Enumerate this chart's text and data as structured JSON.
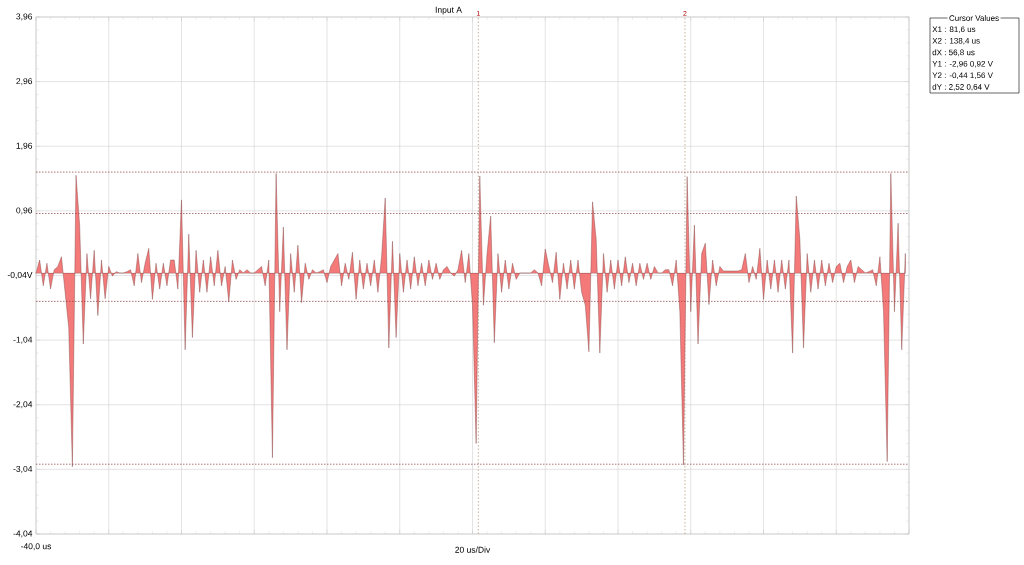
{
  "chart_data": {
    "type": "area",
    "title": "Input A",
    "xlabel": "20 us/Div",
    "color": "#f47a7a",
    "ylim": [
      -4.04,
      3.96
    ],
    "yticks": [
      {
        "value": -4.04,
        "label": "-4,04"
      },
      {
        "value": -3.04,
        "label": "-3,04"
      },
      {
        "value": -2.04,
        "label": "-2,04"
      },
      {
        "value": -1.04,
        "label": "-1,04"
      },
      {
        "value": -0.04,
        "label": "-0,04V"
      },
      {
        "value": 0.96,
        "label": "0,96"
      },
      {
        "value": 1.96,
        "label": "1,96"
      },
      {
        "value": 2.96,
        "label": "2,96"
      },
      {
        "value": 3.96,
        "label": "3,96"
      }
    ],
    "grid": true,
    "ref_lines": [
      {
        "axis": "y",
        "value": 0.92,
        "color": "#8a3a3a",
        "line_style": "dotted"
      },
      {
        "axis": "y",
        "value": 1.56,
        "color": "#8a3a3a",
        "line_style": "dotted"
      },
      {
        "axis": "y",
        "value": -0.44,
        "color": "#8a3a3a",
        "line_style": "dotted"
      },
      {
        "axis": "y",
        "value": -2.96,
        "color": "#8a3a3a",
        "line_style": "dotted"
      }
    ],
    "annotations": [
      "1",
      "2",
      "-40,0 us",
      "Cursor Values",
      "X1 :  81,6 us",
      "X2 :  138,4 us",
      "dX :  56,8 us",
      "Y1 :  -2,96  0,92 V",
      "Y2 :  -0,44  1,56 V",
      "dY :  2,52  0,64 V"
    ],
    "categories": [
      null,
      null,
      null,
      null,
      null,
      null,
      null,
      null,
      null,
      null,
      null,
      null,
      null,
      null,
      null,
      null,
      null,
      null,
      null,
      null,
      null,
      null,
      null,
      null,
      null,
      null,
      null,
      null,
      null,
      null,
      null,
      null,
      null,
      null,
      null,
      null,
      null,
      null,
      null,
      null,
      null,
      null,
      null,
      null,
      null,
      null,
      null,
      null,
      null,
      null,
      null,
      null,
      null,
      null,
      null,
      null,
      null,
      null,
      null,
      null,
      null,
      null,
      null,
      null,
      null,
      null,
      null,
      null,
      null,
      null,
      null,
      null,
      null,
      null,
      null,
      null,
      null,
      null,
      null,
      null,
      null,
      null,
      null,
      null,
      null,
      null,
      null,
      null,
      null,
      null,
      null,
      null,
      null,
      null,
      null,
      null,
      null,
      null,
      null,
      null,
      null,
      null,
      null,
      null,
      null,
      null,
      null,
      null,
      null,
      null,
      null,
      null,
      null,
      null,
      null,
      null,
      null,
      null,
      null,
      null,
      null,
      null,
      null,
      null,
      null,
      null,
      null,
      null,
      null,
      null,
      null,
      null,
      null,
      null,
      null,
      null,
      null,
      null,
      null,
      null,
      null,
      null,
      null,
      null,
      null,
      null,
      null,
      null,
      null,
      null,
      null,
      null,
      null,
      null,
      null,
      null,
      null,
      null,
      null,
      null,
      null,
      null,
      null,
      null,
      null,
      null,
      null,
      null,
      null,
      null,
      null,
      null,
      null,
      null,
      null,
      null,
      null,
      null,
      null,
      null,
      null,
      null,
      null,
      null,
      null,
      null,
      null,
      null,
      null,
      null,
      null,
      null,
      null,
      null,
      null,
      null,
      null,
      null,
      null,
      null,
      null,
      null,
      null,
      null,
      null,
      null,
      null,
      null,
      null,
      null,
      null,
      null,
      null,
      null,
      null,
      null,
      null,
      null,
      null,
      null,
      null,
      null,
      null,
      null,
      null,
      null,
      null,
      null,
      null,
      null,
      null,
      null,
      null,
      null,
      null,
      null,
      null,
      null,
      null,
      null
    ],
    "values": [
      0,
      0.2,
      -0.2,
      0.15,
      -0.25,
      0.05,
      0.1,
      0.25,
      -0.3,
      -0.85,
      -3.0,
      1.51,
      0.74,
      -1.1,
      0.3,
      -0.4,
      0.35,
      -0.66,
      0.2,
      -0.4,
      0.1,
      -0.05,
      0.02,
      0,
      0,
      0.02,
      0.05,
      -0.2,
      0.3,
      -0.15,
      0.15,
      0.38,
      -0.41,
      0.15,
      -0.25,
      0.15,
      -0.2,
      0.2,
      0.2,
      -0.25,
      1.13,
      -1.19,
      0.6,
      -1.0,
      0.35,
      -0.3,
      0.2,
      -0.3,
      0.25,
      -0.2,
      0.35,
      -0.2,
      0.1,
      -0.45,
      0.2,
      -0.1,
      0.05,
      0,
      0.05,
      0,
      0,
      0.05,
      0.1,
      -0.2,
      0.2,
      -2.86,
      1.54,
      -0.6,
      0.71,
      -1.19,
      0.3,
      -0.3,
      0.43,
      -0.46,
      0.15,
      -0.1,
      0.05,
      0,
      0.02,
      0.05,
      -0.15,
      0.1,
      0.2,
      0.3,
      -0.2,
      0.15,
      -0.1,
      0.32,
      -0.41,
      0.2,
      -0.25,
      0.15,
      -0.2,
      0.2,
      -0.3,
      0.25,
      1.16,
      -1.16,
      0.49,
      -1.0,
      0.3,
      -0.3,
      0.2,
      -0.25,
      0.25,
      -0.2,
      0.15,
      -0.2,
      0.2,
      -0.1,
      0.15,
      -0.1,
      0.05,
      0.1,
      0,
      -0.05,
      0.05,
      0.35,
      -0.15,
      0.3,
      -0.5,
      -2.64,
      1.5,
      -0.5,
      0.3,
      0.88,
      -1.08,
      0.3,
      -0.3,
      0.2,
      -0.25,
      0.15,
      -0.1,
      0,
      0,
      0,
      0,
      0.05,
      0,
      -0.2,
      0.37,
      0.1,
      -0.15,
      0.32,
      -0.41,
      0.15,
      -0.25,
      0.2,
      -0.25,
      0.2,
      -0.3,
      -0.5,
      -1.22,
      1.1,
      0.52,
      -1.24,
      0.3,
      -0.3,
      0.2,
      -0.25,
      0.2,
      -0.2,
      0.25,
      -0.15,
      0.15,
      -0.2,
      0.15,
      -0.1,
      0.15,
      -0.1,
      0.1,
      0,
      0,
      0.05,
      0.05,
      -0.2,
      0.2,
      -0.6,
      -2.97,
      1.49,
      -0.6,
      0.74,
      -1.1,
      0.3,
      0.46,
      -0.49,
      0.2,
      -0.2,
      0.1,
      0.03,
      0.03,
      0.03,
      0.03,
      0.03,
      0.05,
      0.3,
      -0.15,
      0.1,
      -0.1,
      0.38,
      -0.41,
      0.2,
      -0.25,
      0.2,
      -0.3,
      0.2,
      -0.25,
      0.2,
      -1.24,
      1.19,
      0.52,
      -1.16,
      0.3,
      -0.3,
      0.2,
      -0.25,
      0.2,
      -0.2,
      0.15,
      -0.15,
      0.1,
      0.15,
      -0.15,
      0.1,
      0.2,
      -0.15,
      0.1,
      0.05,
      0,
      0.02,
      0.05,
      -0.2,
      0.25,
      -0.6,
      -2.92,
      1.54,
      -0.6,
      0.77,
      -1.19,
      0.3
    ]
  }
}
